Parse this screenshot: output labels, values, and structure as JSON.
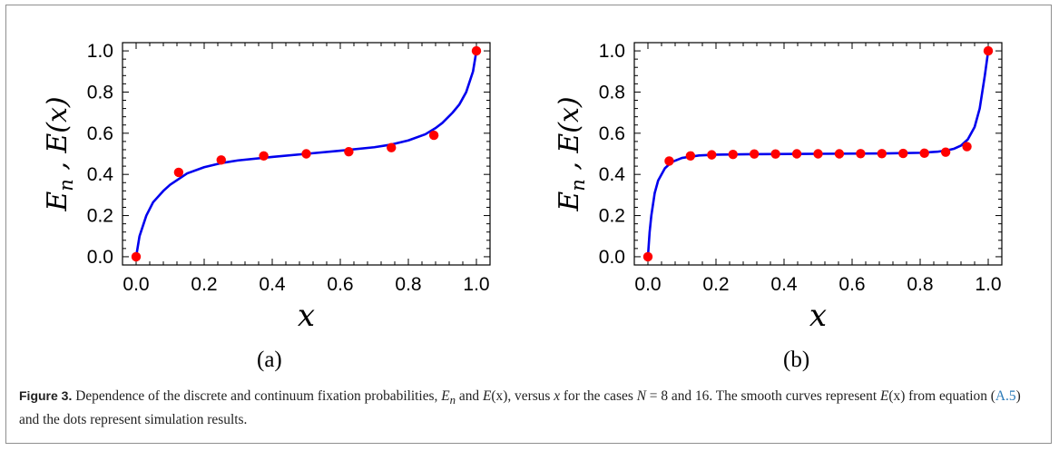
{
  "chart_data": [
    {
      "type": "scatter",
      "panel": "(a)",
      "xlabel": "x",
      "ylabel": "E_n , E(x)",
      "xlim": [
        0,
        1
      ],
      "ylim": [
        0,
        1
      ],
      "xticks": [
        "0.0",
        "0.2",
        "0.4",
        "0.6",
        "0.8",
        "1.0"
      ],
      "yticks": [
        "0.0",
        "0.2",
        "0.4",
        "0.6",
        "0.8",
        "1.0"
      ],
      "N": 8,
      "series": [
        {
          "kind": "points",
          "color": "#ff0000",
          "x": [
            0,
            0.125,
            0.25,
            0.375,
            0.5,
            0.625,
            0.75,
            0.875,
            1.0
          ],
          "y": [
            0.0,
            0.41,
            0.47,
            0.49,
            0.5,
            0.51,
            0.53,
            0.59,
            1.0
          ]
        },
        {
          "kind": "line",
          "color": "#0000ee",
          "x": [
            0.0,
            0.01,
            0.03,
            0.05,
            0.08,
            0.1,
            0.15,
            0.2,
            0.25,
            0.3,
            0.4,
            0.5,
            0.6,
            0.7,
            0.75,
            0.8,
            0.85,
            0.88,
            0.9,
            0.93,
            0.95,
            0.97,
            0.99,
            1.0
          ],
          "y": [
            0.0,
            0.1,
            0.2,
            0.265,
            0.32,
            0.35,
            0.405,
            0.435,
            0.455,
            0.468,
            0.485,
            0.5,
            0.515,
            0.532,
            0.545,
            0.565,
            0.595,
            0.625,
            0.65,
            0.7,
            0.74,
            0.8,
            0.9,
            1.0
          ]
        }
      ]
    },
    {
      "type": "scatter",
      "panel": "(b)",
      "xlabel": "x",
      "ylabel": "E_n , E(x)",
      "xlim": [
        0,
        1
      ],
      "ylim": [
        0,
        1
      ],
      "xticks": [
        "0.0",
        "0.2",
        "0.4",
        "0.6",
        "0.8",
        "1.0"
      ],
      "yticks": [
        "0.0",
        "0.2",
        "0.4",
        "0.6",
        "0.8",
        "1.0"
      ],
      "N": 16,
      "series": [
        {
          "kind": "points",
          "color": "#ff0000",
          "x": [
            0,
            0.0625,
            0.125,
            0.1875,
            0.25,
            0.3125,
            0.375,
            0.4375,
            0.5,
            0.5625,
            0.625,
            0.6875,
            0.75,
            0.8125,
            0.875,
            0.9375,
            1.0
          ],
          "y": [
            0.0,
            0.465,
            0.49,
            0.495,
            0.497,
            0.499,
            0.499,
            0.5,
            0.5,
            0.5,
            0.501,
            0.501,
            0.502,
            0.503,
            0.508,
            0.535,
            1.0
          ]
        },
        {
          "kind": "line",
          "color": "#0000ee",
          "x": [
            0.0,
            0.005,
            0.01,
            0.02,
            0.03,
            0.05,
            0.07,
            0.1,
            0.15,
            0.2,
            0.3,
            0.5,
            0.7,
            0.8,
            0.85,
            0.88,
            0.9,
            0.92,
            0.94,
            0.96,
            0.975,
            0.99,
            1.0
          ],
          "y": [
            0.0,
            0.12,
            0.2,
            0.31,
            0.37,
            0.43,
            0.46,
            0.48,
            0.492,
            0.496,
            0.498,
            0.5,
            0.502,
            0.505,
            0.51,
            0.517,
            0.525,
            0.54,
            0.57,
            0.63,
            0.72,
            0.88,
            1.0
          ]
        }
      ]
    }
  ],
  "panels": {
    "a_label": "(a)",
    "b_label": "(b)"
  },
  "caption": {
    "figure_label": "Figure 3.",
    "t1": " Dependence of the discrete and continuum fixation probabilities, ",
    "E": "E",
    "n": "n",
    "t2": " and ",
    "Ex": "E",
    "xarg": "(x)",
    "t3": ", versus ",
    "xvar": "x",
    "t4": " for the cases ",
    "Nvar": "N",
    "t5": " = 8 and 16. The smooth curves represent ",
    "Ex2": "E",
    "xarg2": "(x)",
    "t6": " from equation (",
    "eq": "A.5",
    "t7": ") and the dots represent simulation results."
  }
}
